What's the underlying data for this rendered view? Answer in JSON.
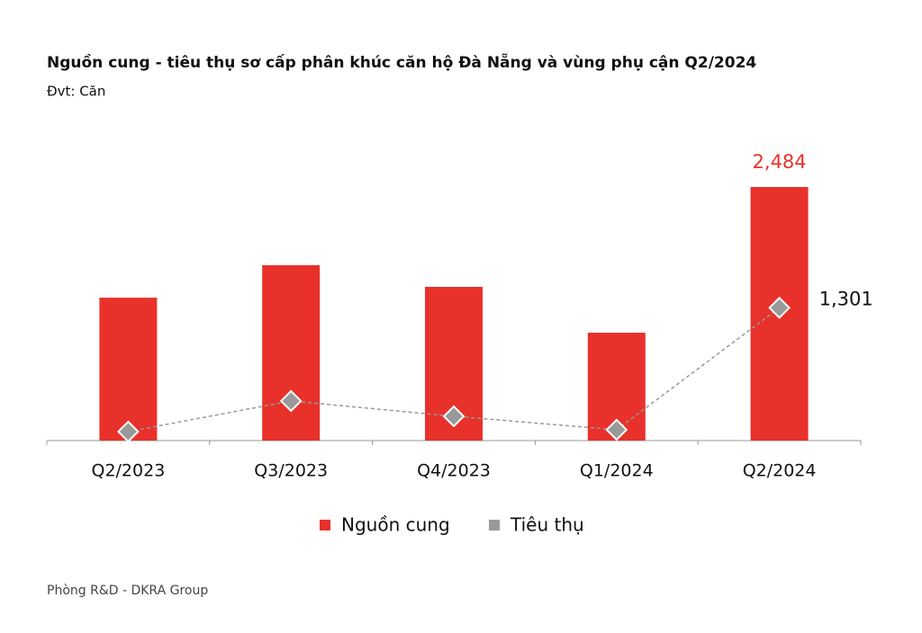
{
  "chart_data": {
    "type": "bar",
    "title": "Nguồn cung - tiêu thụ sơ cấp phân khúc căn hộ Đà Nẵng và vùng phụ cận Q2/2024",
    "subtitle": "Đvt: Căn",
    "source": "Phòng R&D - DKRA Group",
    "categories": [
      "Q2/2023",
      "Q3/2023",
      "Q4/2023",
      "Q1/2024",
      "Q2/2024"
    ],
    "ylim": [
      0,
      2484
    ],
    "series": [
      {
        "name": "Nguồn cung",
        "type": "bar",
        "color": "#e8312a",
        "values": [
          1400,
          1718,
          1506,
          1057,
          2484
        ],
        "value_labels": [
          null,
          null,
          null,
          null,
          "2,484"
        ]
      },
      {
        "name": "Tiêu thụ",
        "type": "line",
        "color": "#999999",
        "values": [
          88,
          388,
          238,
          106,
          1301
        ],
        "value_labels": [
          null,
          null,
          null,
          null,
          "1,301"
        ]
      }
    ]
  }
}
